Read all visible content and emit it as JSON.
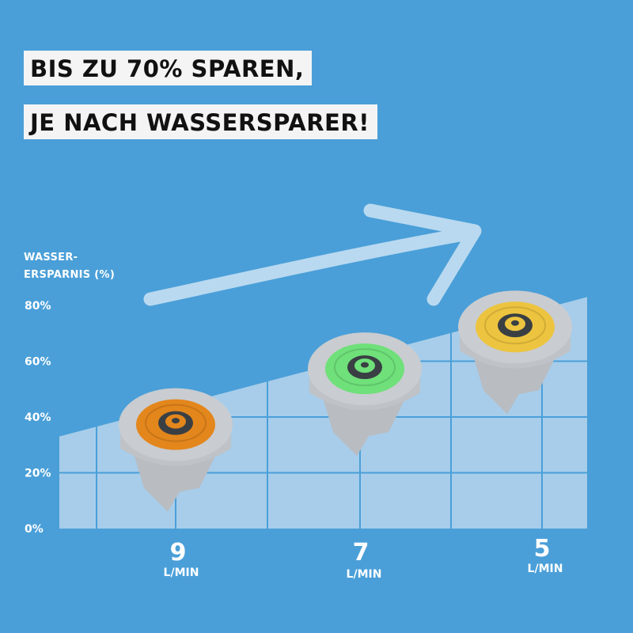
{
  "headline": {
    "line1": "BIS ZU 70% SPAREN,",
    "line2": "JE NACH WASSERSPARER!"
  },
  "colors": {
    "background": "#4a9fd8",
    "area_fill": "#a7cdea",
    "grid_line": "#4a9fd8",
    "arrow": "#b9d9f0",
    "aerator_body": "#c9ccd0",
    "orange_insert": "#e3861c",
    "green_insert": "#6fe07a",
    "yellow_insert": "#edc43f",
    "hub_dark": "#3a3f44"
  },
  "chart_data": {
    "type": "area",
    "ylabel_lines": [
      "WASSER-",
      "ERSPARNIS (%)"
    ],
    "yticks": [
      "0%",
      "20%",
      "40%",
      "60%",
      "80%"
    ],
    "ylim": [
      0,
      80
    ],
    "categories": [
      "9",
      "7",
      "5"
    ],
    "unit": "L/MIN",
    "points": [
      {
        "x": "9",
        "saving": 35,
        "insert": "orange-insert"
      },
      {
        "x": "7",
        "saving": 55,
        "insert": "green-insert"
      },
      {
        "x": "5",
        "saving": 70,
        "insert": "yellow-insert"
      }
    ],
    "area_start": 33,
    "area_end": 83,
    "grid": true
  }
}
